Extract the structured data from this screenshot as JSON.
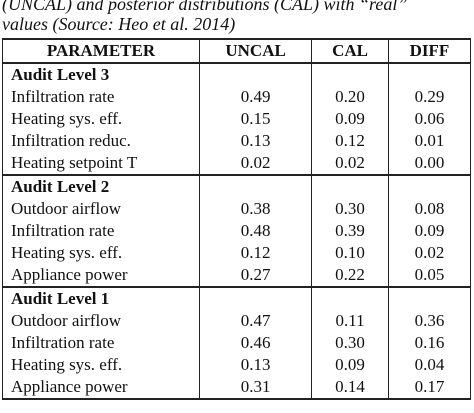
{
  "caption": [
    "(UNCAL) and posterior distributions (CAL) with “real”",
    "values (Source: Heo et al. 2014)"
  ],
  "table": {
    "header": [
      "PARAMETER",
      "UNCAL",
      "CAL",
      "DIFF"
    ],
    "groups": [
      {
        "title": "Audit Level 3",
        "rows": [
          [
            "Infiltration rate",
            "0.49",
            "0.20",
            "0.29"
          ],
          [
            "Heating sys. eff.",
            "0.15",
            "0.09",
            "0.06"
          ],
          [
            "Infiltration reduc.",
            "0.13",
            "0.12",
            "0.01"
          ],
          [
            "Heating setpoint T",
            "0.02",
            "0.02",
            "0.00"
          ]
        ]
      },
      {
        "title": "Audit Level 2",
        "rows": [
          [
            "Outdoor airflow",
            "0.38",
            "0.30",
            "0.08"
          ],
          [
            "Infiltration rate",
            "0.48",
            "0.39",
            "0.09"
          ],
          [
            "Heating sys. eff.",
            "0.12",
            "0.10",
            "0.02"
          ],
          [
            "Appliance power",
            "0.27",
            "0.22",
            "0.05"
          ]
        ]
      },
      {
        "title": "Audit Level 1",
        "rows": [
          [
            "Outdoor airflow",
            "0.47",
            "0.11",
            "0.36"
          ],
          [
            "Infiltration rate",
            "0.46",
            "0.30",
            "0.16"
          ],
          [
            "Heating sys. eff.",
            "0.13",
            "0.09",
            "0.04"
          ],
          [
            "Appliance power",
            "0.31",
            "0.14",
            "0.17"
          ]
        ]
      }
    ]
  }
}
